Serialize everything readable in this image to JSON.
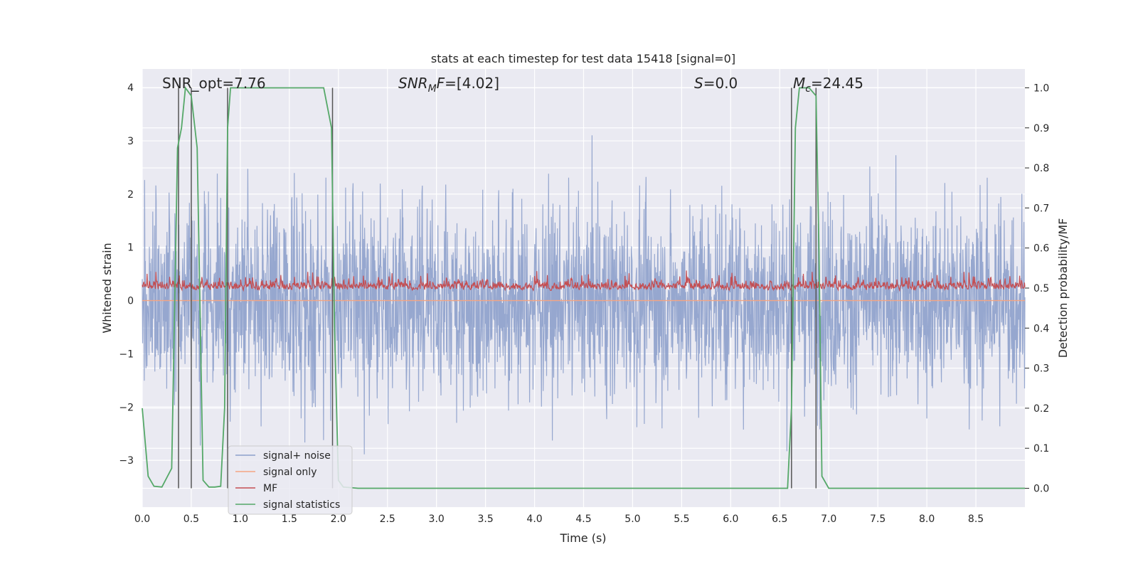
{
  "chart_data": {
    "type": "line",
    "title": "stats at each timestep for test data 15418 [signal=0]",
    "xlabel": "Time (s)",
    "ylabel": "Whitened strain",
    "y2label": "Detection probability/MF",
    "xlim": [
      0,
      9.0
    ],
    "ylim": [
      -3.88,
      4.35
    ],
    "y2lim": [
      -0.047,
      1.047
    ],
    "grid": true,
    "legend_position": "lower-left",
    "xticks": [
      "0.0",
      "0.5",
      "1.0",
      "1.5",
      "2.0",
      "2.5",
      "3.0",
      "3.5",
      "4.0",
      "4.5",
      "5.0",
      "5.5",
      "6.0",
      "6.5",
      "7.0",
      "7.5",
      "8.0",
      "8.5"
    ],
    "xtick_values": [
      0,
      0.5,
      1.0,
      1.5,
      2.0,
      2.5,
      3.0,
      3.5,
      4.0,
      4.5,
      5.0,
      5.5,
      6.0,
      6.5,
      7.0,
      7.5,
      8.0,
      8.5
    ],
    "yticks": [
      "−3",
      "−2",
      "−1",
      "0",
      "1",
      "2",
      "3",
      "4"
    ],
    "ytick_values": [
      -3,
      -2,
      -1,
      0,
      1,
      2,
      3,
      4
    ],
    "y2ticks": [
      "0.0",
      "0.1",
      "0.2",
      "0.3",
      "0.4",
      "0.5",
      "0.6",
      "0.7",
      "0.8",
      "0.9",
      "1.0"
    ],
    "y2tick_values": [
      0,
      0.1,
      0.2,
      0.3,
      0.4,
      0.5,
      0.6,
      0.7,
      0.8,
      0.9,
      1.0
    ],
    "annotations": {
      "snr_opt": {
        "prefix": "SNR_opt=",
        "value": "7.76"
      },
      "snr_mf": {
        "base": "SNR",
        "sub": "M",
        "rest": "F=",
        "value": "[4.02]"
      },
      "s": {
        "base": "S",
        "rest": "=",
        "value": "0.0"
      },
      "mc": {
        "base": "M",
        "sub": "c",
        "rest": "=",
        "value": "24.45"
      }
    },
    "vlines_x": [
      0.37,
      0.5,
      0.87,
      1.94,
      6.62,
      6.87
    ],
    "series": [
      {
        "name": "signal+ noise",
        "color": "#8da0cb",
        "kind": "noise",
        "typical_amplitude": 1.35,
        "peak_range": [
          -3.5,
          4.0
        ]
      },
      {
        "name": "signal only",
        "color": "#f4a582",
        "kind": "flat",
        "value": 0.0
      },
      {
        "name": "MF",
        "color": "#c44e52",
        "kind": "mf",
        "baseline": 0.25,
        "peak_range": [
          0.0,
          0.97
        ]
      },
      {
        "name": "signal statistics",
        "color": "#55a868",
        "kind": "probability",
        "x": [
          0.0,
          0.06,
          0.12,
          0.2,
          0.3,
          0.36,
          0.4,
          0.44,
          0.5,
          0.56,
          0.62,
          0.68,
          0.74,
          0.8,
          0.84,
          0.87,
          0.9,
          0.95,
          1.0,
          1.5,
          1.85,
          1.93,
          1.96,
          2.0,
          2.05,
          2.2,
          2.5,
          3.0,
          3.5,
          4.0,
          4.5,
          5.0,
          5.5,
          6.0,
          6.5,
          6.58,
          6.62,
          6.66,
          6.7,
          6.75,
          6.8,
          6.87,
          6.9,
          6.93,
          7.0,
          7.5,
          8.0,
          8.5,
          9.0
        ],
        "y": [
          0.2,
          0.03,
          0.005,
          0.003,
          0.05,
          0.85,
          0.9,
          1.0,
          0.98,
          0.85,
          0.02,
          0.003,
          0.003,
          0.005,
          0.2,
          0.9,
          1.0,
          1.0,
          1.0,
          1.0,
          1.0,
          0.9,
          0.4,
          0.02,
          0.003,
          0.0,
          0.0,
          0.0,
          0.0,
          0.0,
          0.0,
          0.0,
          0.0,
          0.0,
          0.0,
          0.0,
          0.2,
          0.9,
          1.0,
          1.0,
          1.0,
          0.98,
          0.6,
          0.03,
          0.0,
          0.0,
          0.0,
          0.0,
          0.0
        ]
      }
    ]
  }
}
